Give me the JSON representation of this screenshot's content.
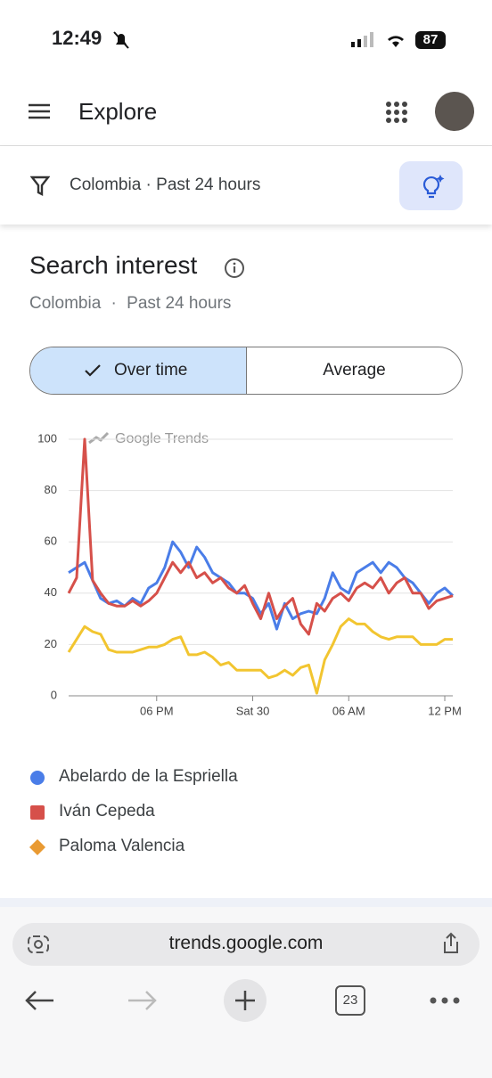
{
  "status": {
    "time": "12:49",
    "battery": "87"
  },
  "header": {
    "title": "Explore"
  },
  "filter": {
    "label": "Colombia · Past 24 hours"
  },
  "section": {
    "title": "Search interest",
    "region": "Colombia",
    "separator": "·",
    "period": "Past 24 hours"
  },
  "toggle": {
    "selected": "Over time",
    "other": "Average"
  },
  "chart_data": {
    "type": "line",
    "watermark": "Google Trends",
    "x": [
      0.5,
      1,
      1.5,
      2,
      2.5,
      3,
      3.5,
      4,
      4.5,
      5,
      5.5,
      6,
      6.5,
      7,
      7.5,
      8,
      8.5,
      9,
      9.5,
      10,
      10.5,
      11,
      11.5,
      12,
      12.5,
      13,
      13.5,
      14,
      14.5,
      15,
      15.5,
      16,
      16.5,
      17,
      17.5,
      18,
      18.5,
      19,
      19.5,
      20,
      20.5,
      21,
      21.5,
      22,
      22.5,
      23,
      23.5,
      24,
      24.5
    ],
    "series": [
      {
        "name": "Abelardo de la Espriella",
        "color": "#4a7de8",
        "marker": "circle",
        "values": [
          48,
          50,
          52,
          45,
          38,
          36,
          37,
          35,
          38,
          36,
          42,
          44,
          50,
          60,
          56,
          50,
          58,
          54,
          48,
          46,
          44,
          40,
          40,
          38,
          32,
          36,
          26,
          36,
          30,
          32,
          33,
          32,
          38,
          48,
          42,
          40,
          48,
          50,
          52,
          48,
          52,
          50,
          46,
          44,
          40,
          36,
          40,
          42,
          39
        ]
      },
      {
        "name": "Iván Cepeda",
        "color": "#d6504a",
        "marker": "square",
        "values": [
          40,
          46,
          100,
          45,
          40,
          36,
          35,
          35,
          37,
          35,
          37,
          40,
          46,
          52,
          48,
          52,
          46,
          48,
          44,
          46,
          42,
          40,
          43,
          36,
          30,
          40,
          30,
          35,
          38,
          28,
          24,
          36,
          33,
          38,
          40,
          37,
          42,
          44,
          42,
          46,
          40,
          44,
          46,
          40,
          40,
          34,
          37,
          38,
          39
        ]
      },
      {
        "name": "Paloma Valencia",
        "color": "#f2c530",
        "marker": "diamond",
        "marker_color": "#e99a32",
        "values": [
          17,
          22,
          27,
          25,
          24,
          18,
          17,
          17,
          17,
          18,
          19,
          19,
          20,
          22,
          23,
          16,
          16,
          17,
          15,
          12,
          13,
          10,
          10,
          10,
          10,
          7,
          8,
          10,
          8,
          11,
          12,
          1,
          14,
          20,
          27,
          30,
          28,
          28,
          25,
          23,
          22,
          23,
          23,
          23,
          20,
          20,
          20,
          22,
          22
        ]
      }
    ],
    "xlim": [
      0.5,
      24.5
    ],
    "xticks": [
      {
        "value": 6,
        "label": "06 PM"
      },
      {
        "value": 12,
        "label": "Sat 30"
      },
      {
        "value": 18,
        "label": "06 AM"
      },
      {
        "value": 24,
        "label": "12 PM"
      }
    ],
    "ylim": [
      0,
      100
    ],
    "yticks": [
      0,
      20,
      40,
      60,
      80,
      100
    ],
    "grid": true
  },
  "browser": {
    "url": "trends.google.com",
    "tabs": "23"
  }
}
